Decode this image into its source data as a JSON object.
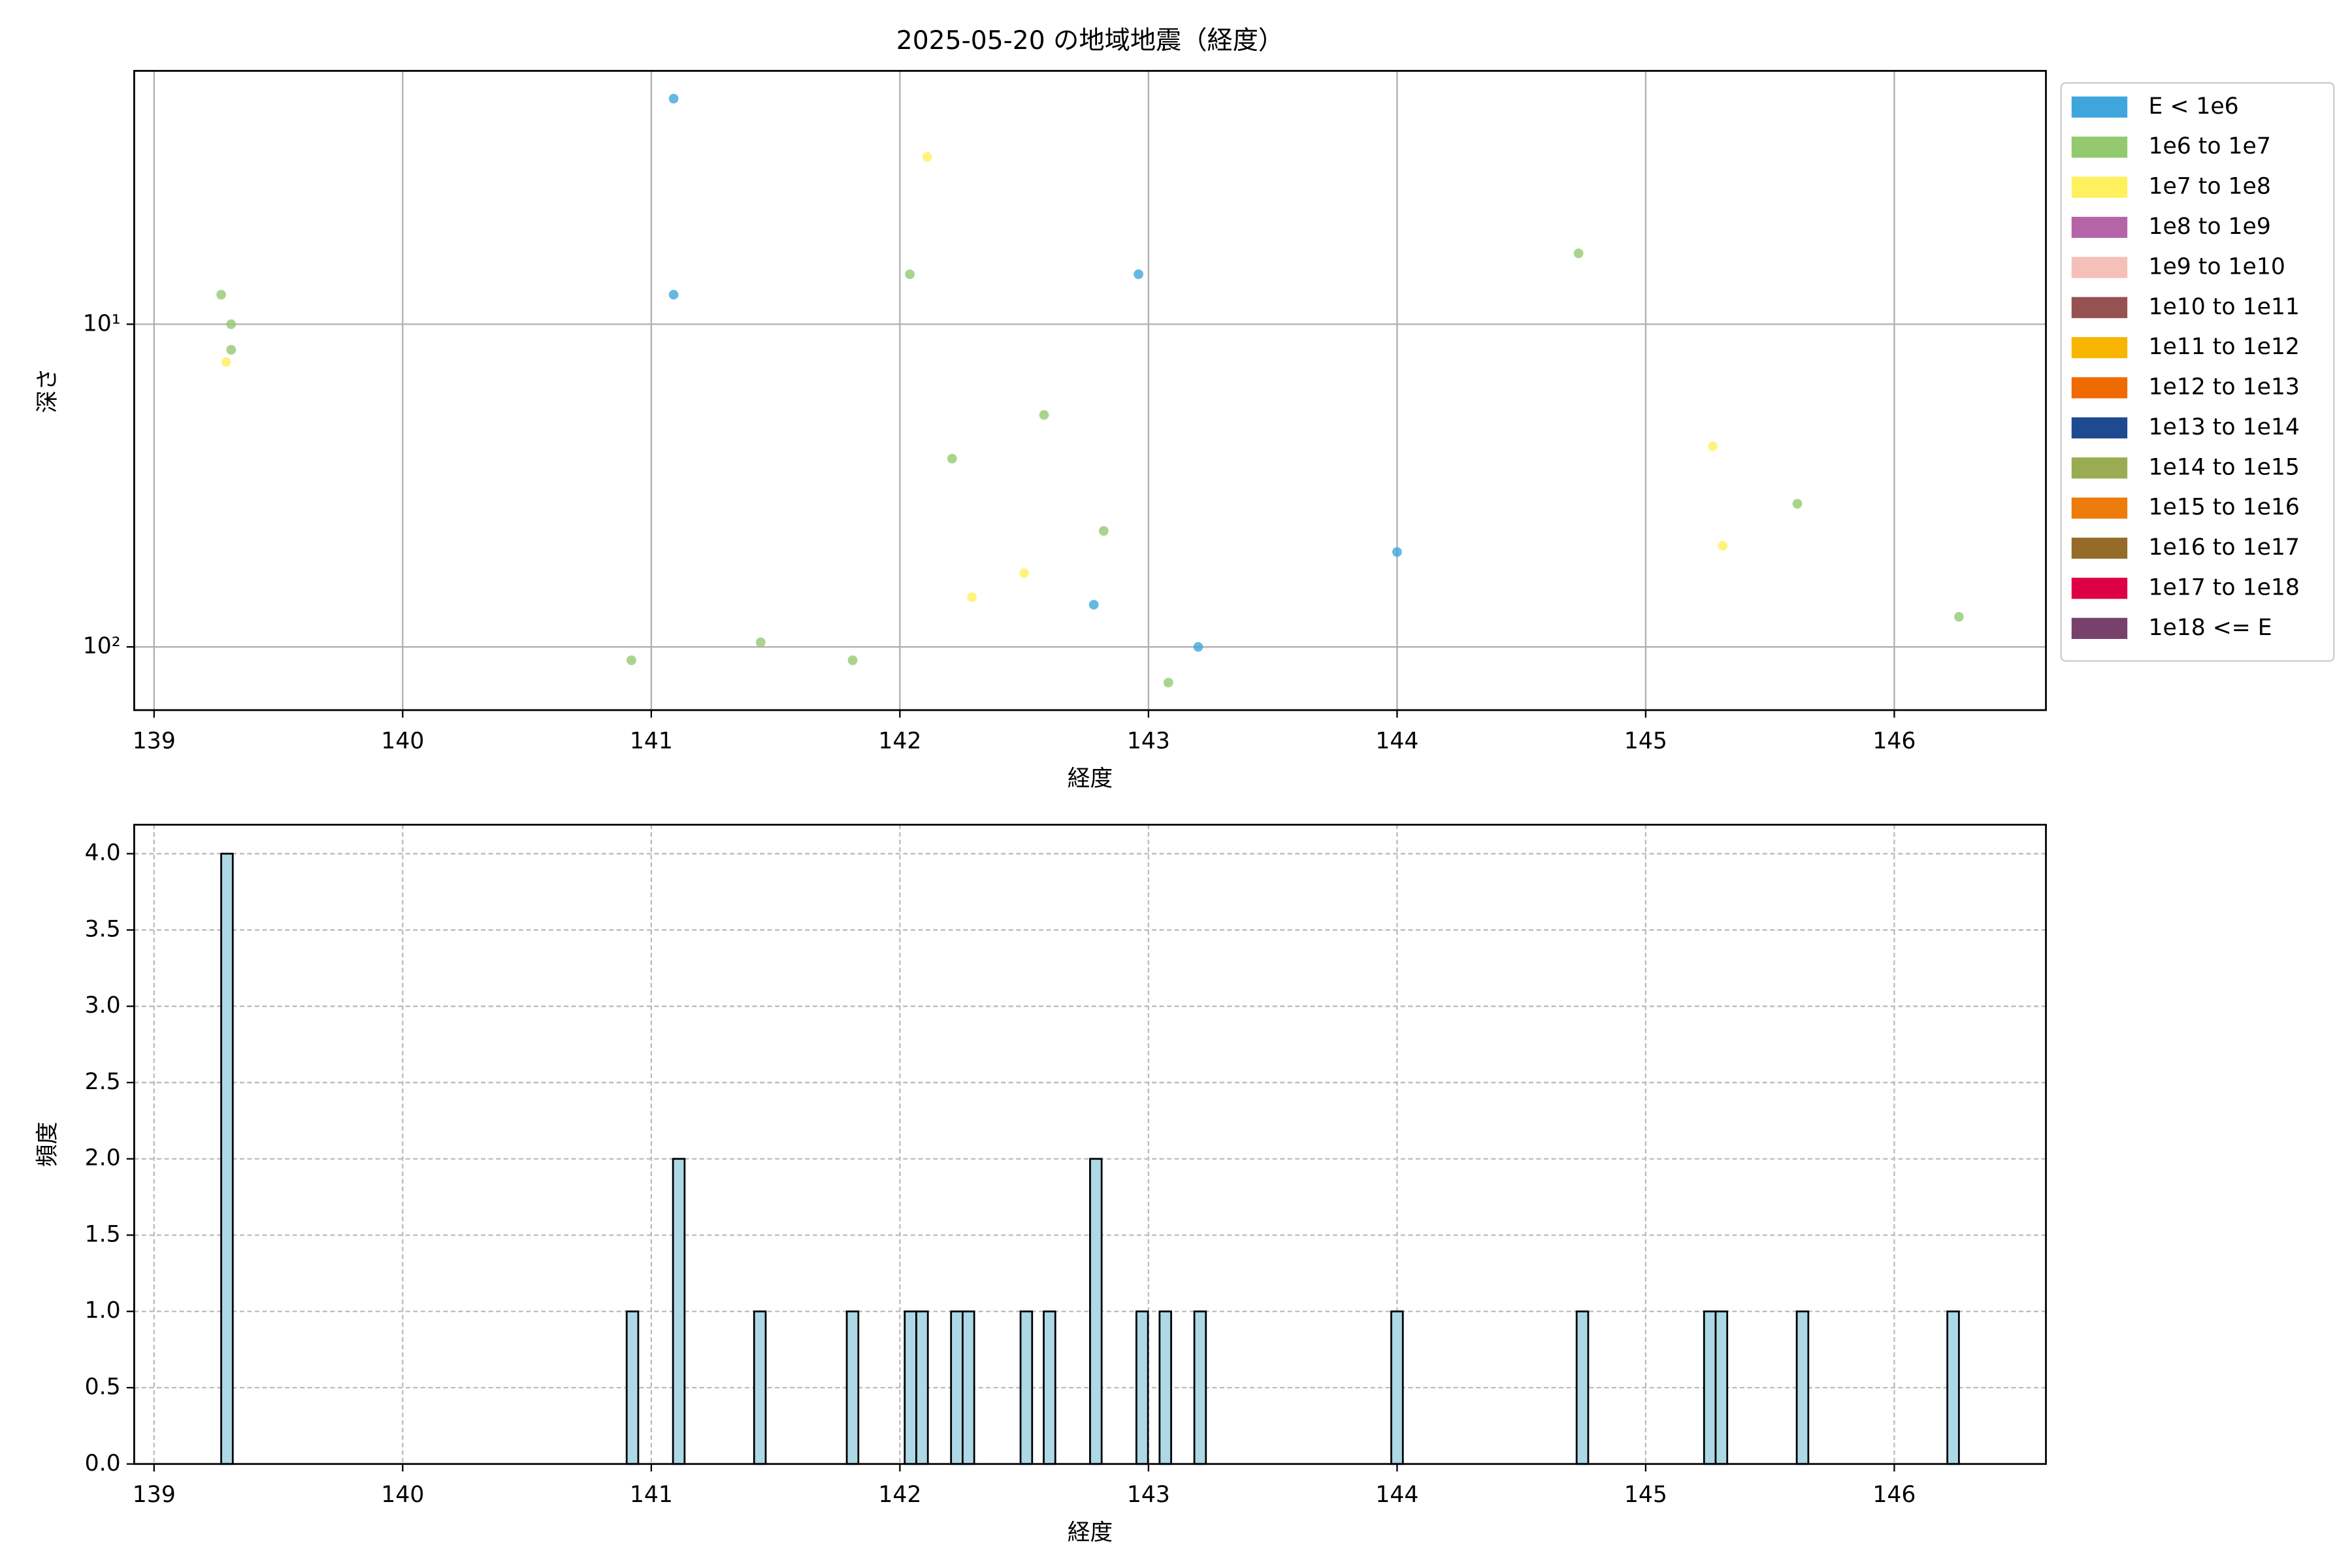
{
  "chart_data": [
    {
      "type": "scatter",
      "title": "2025-05-20 の地域地震（経度）",
      "xlabel": "経度",
      "ylabel": "深さ",
      "xlim": [
        138.92,
        146.61
      ],
      "xticks": [
        139,
        140,
        141,
        142,
        143,
        144,
        145,
        146
      ],
      "ylim": [
        1.64,
        157
      ],
      "yscale": "log",
      "y_inverted": true,
      "yticks": [
        {
          "value": 10,
          "label": "10¹"
        },
        {
          "value": 100,
          "label": "10²"
        }
      ],
      "grid": true,
      "grid_linestyle": "solid",
      "legend": "outside right",
      "series": [
        {
          "name": "E < 1e6",
          "color": "#3fa6dd",
          "x": [
            141.09,
            141.09,
            142.96,
            142.78,
            143.2,
            144.0
          ],
          "values": [
            2.0,
            8.1,
            7.0,
            74,
            100,
            50.8
          ]
        },
        {
          "name": "1e6 to 1e7",
          "color": "#93c96f",
          "x": [
            139.27,
            139.31,
            139.31,
            142.04,
            142.58,
            142.21,
            142.82,
            140.92,
            141.44,
            141.81,
            143.08,
            144.73,
            145.61,
            146.26
          ],
          "values": [
            8.1,
            10,
            12.0,
            7.0,
            19.1,
            26.1,
            43.7,
            110,
            96.8,
            110,
            129,
            6.03,
            36.0,
            80.7
          ]
        },
        {
          "name": "1e7 to 1e8",
          "color": "#fff05e",
          "x": [
            139.29,
            142.11,
            142.29,
            142.5,
            145.27,
            145.31
          ],
          "values": [
            13.1,
            3.03,
            70.1,
            59,
            23.9,
            48.6
          ]
        },
        {
          "name": "1e8 to 1e9",
          "color": "#b565a7",
          "x": [],
          "values": []
        },
        {
          "name": "1e9 to 1e10",
          "color": "#f5c0b8",
          "x": [],
          "values": []
        },
        {
          "name": "1e10 to 1e11",
          "color": "#955251",
          "x": [],
          "values": []
        },
        {
          "name": "1e11 to 1e12",
          "color": "#f8b500",
          "x": [],
          "values": []
        },
        {
          "name": "1e12 to 1e13",
          "color": "#ef6a00",
          "x": [],
          "values": []
        },
        {
          "name": "1e13 to 1e14",
          "color": "#1f4a8f",
          "x": [],
          "values": []
        },
        {
          "name": "1e14 to 1e15",
          "color": "#9aac51",
          "x": [],
          "values": []
        },
        {
          "name": "1e15 to 1e16",
          "color": "#ee7c0c",
          "x": [],
          "values": []
        },
        {
          "name": "1e16 to 1e17",
          "color": "#956b2a",
          "x": [],
          "values": []
        },
        {
          "name": "1e17 to 1e18",
          "color": "#dd0044",
          "x": [],
          "values": []
        },
        {
          "name": "1e18 <= E",
          "color": "#77416c",
          "x": [],
          "values": []
        }
      ]
    },
    {
      "type": "histogram",
      "xlabel": "経度",
      "ylabel": "頻度",
      "color": "#add8e6",
      "edgecolor": "#000000",
      "xlim": [
        138.92,
        146.61
      ],
      "xticks": [
        139,
        140,
        141,
        142,
        143,
        144,
        145,
        146
      ],
      "ylim": [
        0,
        4.19
      ],
      "yticks": [
        {
          "value": 0,
          "label": "0.0"
        },
        0.5,
        {
          "value": 1,
          "label": "1.0"
        },
        1.5,
        {
          "value": 2,
          "label": "2.0"
        },
        2.5,
        {
          "value": 3,
          "label": "3.0"
        },
        3.5,
        {
          "value": 4,
          "label": "4.0"
        }
      ],
      "grid": true,
      "grid_linestyle": "dashed",
      "bins": [
        139.27,
        139.3166,
        139.3632,
        139.4098,
        139.4564,
        139.503,
        139.5496,
        139.5962,
        139.6428,
        139.6894,
        139.736,
        139.7826,
        139.8292,
        139.8758,
        139.9224,
        139.969,
        140.0156,
        140.0622,
        140.1088,
        140.1554,
        140.202,
        140.2486,
        140.2952,
        140.3418,
        140.3884,
        140.435,
        140.4816,
        140.5282,
        140.5748,
        140.6214,
        140.668,
        140.7146,
        140.7612,
        140.8078,
        140.8544,
        140.901,
        140.9476,
        140.9942,
        141.0408,
        141.0874,
        141.134,
        141.1806,
        141.2272,
        141.2738,
        141.3204,
        141.367,
        141.4136,
        141.4602,
        141.5068,
        141.5534,
        141.6,
        141.6466,
        141.6932,
        141.7398,
        141.7864,
        141.833,
        141.8796,
        141.9262,
        141.9728,
        142.0194,
        142.066,
        142.1126,
        142.1592,
        142.2058,
        142.2524,
        142.299,
        142.3456,
        142.3922,
        142.4388,
        142.4854,
        142.532,
        142.5786,
        142.6252,
        142.6718,
        142.7184,
        142.765,
        142.8116,
        142.8582,
        142.9048,
        142.9514,
        142.998,
        143.0446,
        143.0912,
        143.1378,
        143.1844,
        143.231,
        143.2776,
        143.3242,
        143.3708,
        143.4174,
        143.464,
        143.5106,
        143.5572,
        143.6038,
        143.6504,
        143.697,
        143.7436,
        143.7902,
        143.8368,
        143.8834,
        143.93,
        143.9766,
        144.0232,
        144.0698,
        144.1164,
        144.163,
        144.2096,
        144.2562,
        144.3028,
        144.3494,
        144.396,
        144.4426,
        144.4892,
        144.5358,
        144.5824,
        144.629,
        144.6756,
        144.7222,
        144.7688,
        144.8154,
        144.862,
        144.9086,
        144.9552,
        145.0018,
        145.0484,
        145.095,
        145.1416,
        145.1882,
        145.2348,
        145.2814,
        145.328,
        145.3746,
        145.4212,
        145.4678,
        145.5144,
        145.561,
        145.6076,
        145.6542,
        145.7008,
        145.7474,
        145.794,
        145.8406,
        145.8872,
        145.9338,
        145.9804,
        146.027,
        146.0736,
        146.1202,
        146.1668,
        146.2134,
        146.26
      ],
      "values": [
        4,
        0,
        0,
        0,
        0,
        0,
        0,
        0,
        0,
        0,
        0,
        0,
        0,
        0,
        0,
        0,
        0,
        0,
        0,
        0,
        0,
        0,
        0,
        0,
        0,
        0,
        0,
        0,
        0,
        0,
        0,
        0,
        0,
        0,
        0,
        1,
        0,
        0,
        0,
        2,
        0,
        0,
        0,
        0,
        0,
        0,
        1,
        0,
        0,
        0,
        0,
        0,
        0,
        0,
        1,
        0,
        0,
        0,
        0,
        1,
        1,
        0,
        0,
        1,
        1,
        0,
        0,
        0,
        0,
        1,
        0,
        1,
        0,
        0,
        0,
        2,
        0,
        0,
        0,
        1,
        0,
        1,
        0,
        0,
        1,
        0,
        0,
        0,
        0,
        0,
        0,
        0,
        0,
        0,
        0,
        0,
        0,
        0,
        0,
        0,
        0,
        1,
        0,
        0,
        0,
        0,
        0,
        0,
        0,
        0,
        0,
        0,
        0,
        0,
        0,
        0,
        0,
        1,
        0,
        0,
        0,
        0,
        0,
        0,
        0,
        0,
        0,
        0,
        1,
        1,
        0,
        0,
        0,
        0,
        0,
        0,
        1,
        0,
        0,
        0,
        0,
        0,
        0,
        0,
        0,
        0,
        0,
        0,
        0,
        1
      ]
    }
  ]
}
